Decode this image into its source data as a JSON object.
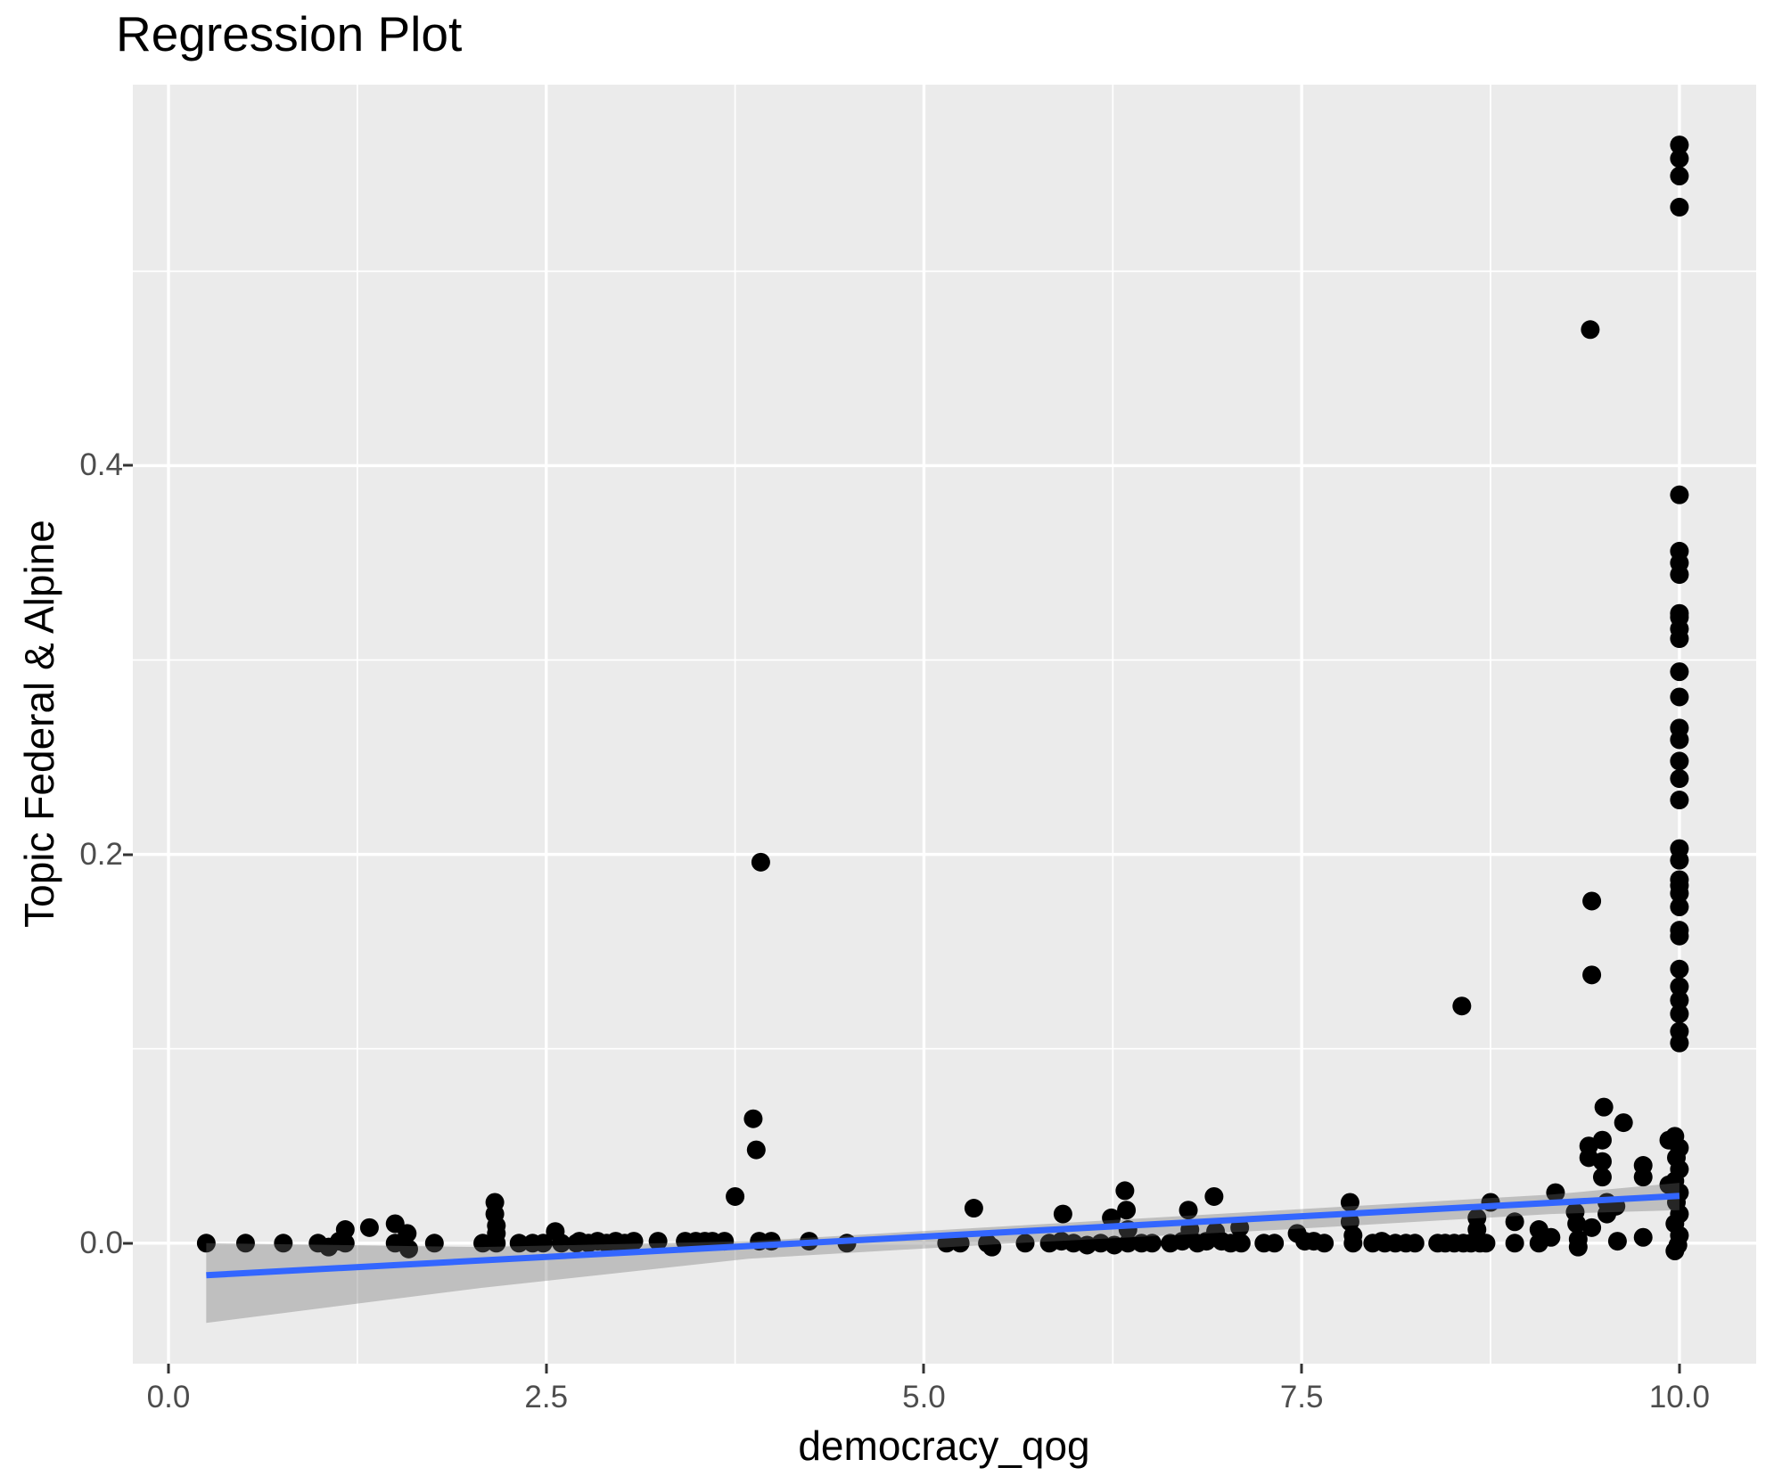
{
  "colors": {
    "panel_background": "#EBEBEB",
    "grid_line": "#FFFFFF",
    "point": "#000000",
    "smooth_line": "#3366FF",
    "ci_ribbon": "rgba(110,110,110,0.35)",
    "tick_label": "#4D4D4D",
    "tick_mark": "#333333",
    "text": "#000000"
  },
  "chart_data": {
    "type": "scatter",
    "title": "Regression Plot",
    "xlabel": "democracy_qog",
    "ylabel": "Topic Federal & Alpine",
    "xlim": [
      -0.236,
      10.508
    ],
    "ylim": [
      -0.062,
      0.596
    ],
    "grid": "major-and-minor",
    "legend": "none",
    "x_major_ticks": [
      0,
      2.5,
      5,
      7.5,
      10
    ],
    "x_tick_labels": [
      "0.0",
      "2.5",
      "5.0",
      "7.5",
      "10.0"
    ],
    "x_minor_ticks": [
      1.25,
      3.75,
      6.25,
      8.75
    ],
    "y_major_ticks": [
      0,
      0.2,
      0.4
    ],
    "y_tick_labels": [
      "0.0",
      "0.2",
      "0.4"
    ],
    "y_minor_ticks": [
      0.1,
      0.3,
      0.5
    ],
    "points": [
      [
        0.25,
        0.0
      ],
      [
        0.51,
        0.0
      ],
      [
        0.76,
        0.0
      ],
      [
        0.99,
        0.0
      ],
      [
        1.06,
        -0.002
      ],
      [
        1.13,
        0.001
      ],
      [
        1.17,
        0.007
      ],
      [
        1.17,
        0.0
      ],
      [
        1.33,
        0.008
      ],
      [
        1.5,
        0.01
      ],
      [
        1.5,
        0.0
      ],
      [
        1.58,
        0.005
      ],
      [
        1.59,
        -0.003
      ],
      [
        1.76,
        0.0
      ],
      [
        2.08,
        0.0
      ],
      [
        2.16,
        0.021
      ],
      [
        2.16,
        0.015
      ],
      [
        2.17,
        0.009
      ],
      [
        2.17,
        0.005
      ],
      [
        2.17,
        0.0
      ],
      [
        2.32,
        0.0
      ],
      [
        2.41,
        0.0
      ],
      [
        2.48,
        0.0
      ],
      [
        2.56,
        0.006
      ],
      [
        2.6,
        0.0
      ],
      [
        2.7,
        0.0
      ],
      [
        2.72,
        0.001
      ],
      [
        2.78,
        0.0
      ],
      [
        2.84,
        0.001
      ],
      [
        2.9,
        0.0
      ],
      [
        2.96,
        0.001
      ],
      [
        3.02,
        0.0
      ],
      [
        3.08,
        0.001
      ],
      [
        3.24,
        0.001
      ],
      [
        3.42,
        0.001
      ],
      [
        3.49,
        0.001
      ],
      [
        3.55,
        0.001
      ],
      [
        3.6,
        0.001
      ],
      [
        3.68,
        0.001
      ],
      [
        3.75,
        0.024
      ],
      [
        3.87,
        0.064
      ],
      [
        3.89,
        0.048
      ],
      [
        3.91,
        0.001
      ],
      [
        3.92,
        0.196
      ],
      [
        3.99,
        0.001
      ],
      [
        4.24,
        0.001
      ],
      [
        4.49,
        0.0
      ],
      [
        5.15,
        0.0
      ],
      [
        5.24,
        0.0
      ],
      [
        5.33,
        0.018
      ],
      [
        5.42,
        0.0
      ],
      [
        5.45,
        -0.002
      ],
      [
        5.67,
        0.0
      ],
      [
        5.83,
        0.0
      ],
      [
        5.91,
        0.001
      ],
      [
        5.92,
        0.015
      ],
      [
        5.99,
        0.0
      ],
      [
        6.08,
        -0.001
      ],
      [
        6.17,
        0.0
      ],
      [
        6.24,
        0.013
      ],
      [
        6.26,
        -0.001
      ],
      [
        6.33,
        0.027
      ],
      [
        6.34,
        0.017
      ],
      [
        6.35,
        0.007
      ],
      [
        6.35,
        0.0
      ],
      [
        6.44,
        0.0
      ],
      [
        6.51,
        0.0
      ],
      [
        6.63,
        0.0
      ],
      [
        6.71,
        0.001
      ],
      [
        6.75,
        0.017
      ],
      [
        6.76,
        0.007
      ],
      [
        6.81,
        0.0
      ],
      [
        6.87,
        0.001
      ],
      [
        6.92,
        0.024
      ],
      [
        6.93,
        0.006
      ],
      [
        6.97,
        0.001
      ],
      [
        7.03,
        0.0
      ],
      [
        7.09,
        0.008
      ],
      [
        7.1,
        0.0
      ],
      [
        7.25,
        0.0
      ],
      [
        7.32,
        0.0
      ],
      [
        7.47,
        0.005
      ],
      [
        7.52,
        0.001
      ],
      [
        7.58,
        0.001
      ],
      [
        7.65,
        0.0
      ],
      [
        7.82,
        0.021
      ],
      [
        7.82,
        0.011
      ],
      [
        7.84,
        0.004
      ],
      [
        7.84,
        0.0
      ],
      [
        7.97,
        0.0
      ],
      [
        8.03,
        0.001
      ],
      [
        8.05,
        0.0
      ],
      [
        8.12,
        0.0
      ],
      [
        8.19,
        0.0
      ],
      [
        8.25,
        0.0
      ],
      [
        8.4,
        0.0
      ],
      [
        8.45,
        0.0
      ],
      [
        8.51,
        0.0
      ],
      [
        8.56,
        0.122
      ],
      [
        8.57,
        0.0
      ],
      [
        8.62,
        0.0
      ],
      [
        8.66,
        0.013
      ],
      [
        8.66,
        0.007
      ],
      [
        8.68,
        0.0
      ],
      [
        8.72,
        0.0
      ],
      [
        8.75,
        0.021
      ],
      [
        8.91,
        0.011
      ],
      [
        8.91,
        0.0
      ],
      [
        9.07,
        0.007
      ],
      [
        9.07,
        0.0
      ],
      [
        9.15,
        0.003
      ],
      [
        9.18,
        0.026
      ],
      [
        9.31,
        0.016
      ],
      [
        9.32,
        0.01
      ],
      [
        9.33,
        0.002
      ],
      [
        9.33,
        -0.002
      ],
      [
        9.4,
        0.05
      ],
      [
        9.4,
        0.044
      ],
      [
        9.41,
        0.47
      ],
      [
        9.42,
        0.176
      ],
      [
        9.42,
        0.138
      ],
      [
        9.42,
        0.008
      ],
      [
        9.49,
        0.053
      ],
      [
        9.49,
        0.042
      ],
      [
        9.49,
        0.034
      ],
      [
        9.5,
        0.07
      ],
      [
        9.52,
        0.021
      ],
      [
        9.52,
        0.015
      ],
      [
        9.58,
        0.019
      ],
      [
        9.59,
        0.001
      ],
      [
        9.63,
        0.062
      ],
      [
        9.76,
        0.04
      ],
      [
        9.76,
        0.034
      ],
      [
        9.76,
        0.003
      ],
      [
        10,
        0.565
      ],
      [
        10,
        0.558
      ],
      [
        10,
        0.549
      ],
      [
        10,
        0.533
      ],
      [
        10,
        0.385
      ],
      [
        10,
        0.356
      ],
      [
        10,
        0.35
      ],
      [
        10,
        0.344
      ],
      [
        10,
        0.324
      ],
      [
        10,
        0.322
      ],
      [
        10,
        0.316
      ],
      [
        10,
        0.311
      ],
      [
        10,
        0.294
      ],
      [
        10,
        0.281
      ],
      [
        10,
        0.265
      ],
      [
        10,
        0.259
      ],
      [
        10,
        0.248
      ],
      [
        10,
        0.239
      ],
      [
        10,
        0.228
      ],
      [
        10,
        0.203
      ],
      [
        10,
        0.197
      ],
      [
        10,
        0.187
      ],
      [
        10,
        0.184
      ],
      [
        10,
        0.18
      ],
      [
        10,
        0.173
      ],
      [
        10,
        0.161
      ],
      [
        10,
        0.158
      ],
      [
        10,
        0.141
      ],
      [
        10,
        0.132
      ],
      [
        10,
        0.125
      ],
      [
        10,
        0.118
      ],
      [
        10,
        0.109
      ],
      [
        10,
        0.103
      ],
      [
        9.97,
        0.055
      ],
      [
        10,
        0.049
      ],
      [
        9.98,
        0.044
      ],
      [
        10,
        0.038
      ],
      [
        9.97,
        0.032
      ],
      [
        10,
        0.026
      ],
      [
        9.98,
        0.021
      ],
      [
        10,
        0.015
      ],
      [
        9.97,
        0.01
      ],
      [
        10,
        0.004
      ],
      [
        9.99,
        -0.001
      ],
      [
        9.97,
        -0.004
      ],
      [
        9.93,
        0.053
      ],
      [
        9.93,
        0.03
      ]
    ],
    "smooth": {
      "type": "linear",
      "line": {
        "x": [
          0.25,
          10.0
        ],
        "y": [
          -0.0165,
          0.0243
        ]
      },
      "ribbon": {
        "x": [
          0.25,
          2.07,
          3.84,
          5.61,
          7.38,
          9.15,
          10.0
        ],
        "upper": [
          0.0,
          -0.002,
          0.001,
          0.009,
          0.017,
          0.025,
          0.031
        ],
        "lower": [
          -0.041,
          -0.023,
          -0.008,
          0.0,
          0.007,
          0.015,
          0.017
        ]
      }
    }
  }
}
